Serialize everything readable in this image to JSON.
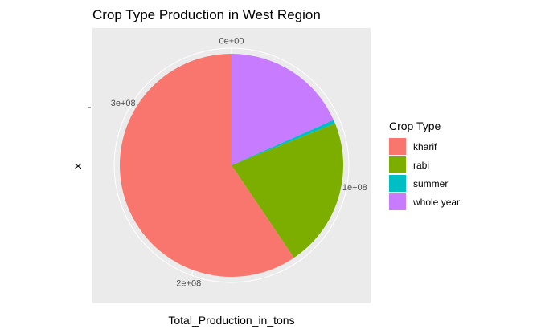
{
  "chart_data": {
    "type": "pie",
    "title": "Crop Type Production in West Region",
    "xlabel": "Total_Production_in_tons",
    "ylabel": "x",
    "theta_axis": {
      "ticks": [
        {
          "label": "0e+00",
          "value": 0
        },
        {
          "label": "1e+08",
          "value": 100000000
        },
        {
          "label": "2e+08",
          "value": 200000000
        },
        {
          "label": "3e+08",
          "value": 300000000
        }
      ],
      "total": 360000000
    },
    "legend": {
      "title": "Crop Type",
      "position": "right"
    },
    "categories": [
      "kharif",
      "rabi",
      "summer",
      "whole year"
    ],
    "series": [
      {
        "name": "kharif",
        "value": 214000000,
        "color": "#F8766D"
      },
      {
        "name": "rabi",
        "value": 78000000,
        "color": "#7CAE00"
      },
      {
        "name": "summer",
        "value": 2000000,
        "color": "#00BFC4"
      },
      {
        "name": "whole year",
        "value": 66000000,
        "color": "#C77CFF"
      }
    ],
    "stack_order": [
      "whole year",
      "summer",
      "rabi",
      "kharif"
    ],
    "panel_background": "#EBEBEB",
    "grid_color": "#FFFFFF",
    "grid": true
  }
}
